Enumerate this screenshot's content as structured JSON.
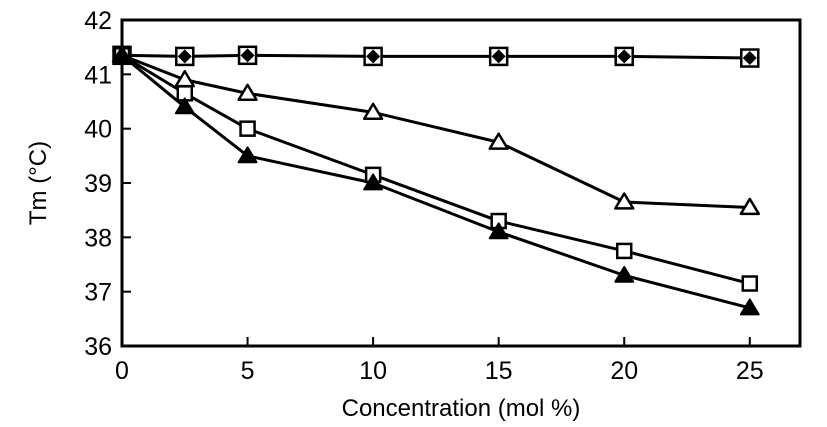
{
  "chart_data": {
    "type": "line",
    "title": "",
    "xlabel": "Concentration (mol %)",
    "ylabel": "Tm (°C)",
    "xlim": [
      0,
      27
    ],
    "ylim": [
      36,
      42
    ],
    "xticks": [
      0,
      5,
      10,
      15,
      20,
      25
    ],
    "yticks": [
      36,
      37,
      38,
      39,
      40,
      41,
      42
    ],
    "x_tick_labels": [
      "0",
      "5",
      "10",
      "15",
      "20",
      "25"
    ],
    "y_tick_labels": [
      "36",
      "37",
      "38",
      "39",
      "40",
      "41",
      "42"
    ],
    "grid": false,
    "legend": "none",
    "series": [
      {
        "marker": "diamond-in-square",
        "x": [
          0,
          2.5,
          5,
          10,
          15,
          20,
          25
        ],
        "y": [
          41.35,
          41.33,
          41.35,
          41.33,
          41.33,
          41.33,
          41.3
        ]
      },
      {
        "marker": "open-triangle",
        "x": [
          0,
          2.5,
          5,
          10,
          15,
          20,
          25
        ],
        "y": [
          41.35,
          40.9,
          40.65,
          40.3,
          39.75,
          38.65,
          38.55
        ]
      },
      {
        "marker": "open-square",
        "x": [
          0,
          2.5,
          5,
          10,
          15,
          20,
          25
        ],
        "y": [
          41.35,
          40.65,
          40.0,
          39.15,
          38.3,
          37.75,
          37.15
        ]
      },
      {
        "marker": "filled-triangle",
        "x": [
          0,
          2.5,
          5,
          10,
          15,
          20,
          25
        ],
        "y": [
          41.35,
          40.4,
          39.5,
          39.0,
          38.1,
          37.3,
          36.7
        ]
      }
    ]
  }
}
